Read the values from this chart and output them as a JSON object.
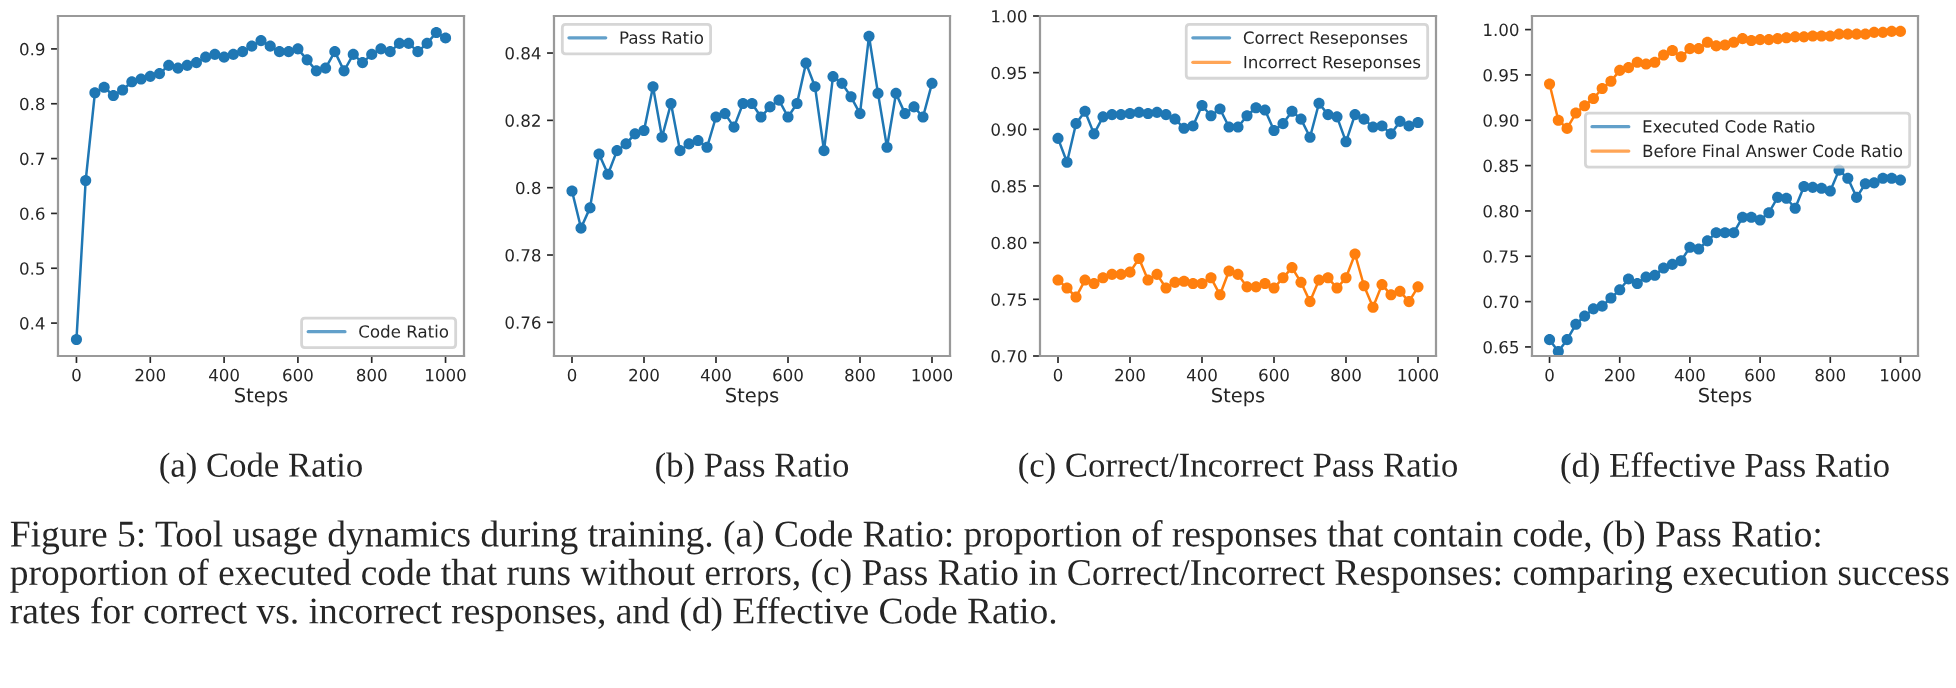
{
  "chart_data": [
    {
      "type": "line",
      "title": "(a) Code Ratio",
      "xlabel": "Steps",
      "x": [
        0,
        25,
        50,
        75,
        100,
        125,
        150,
        175,
        200,
        225,
        250,
        275,
        300,
        325,
        350,
        375,
        400,
        425,
        450,
        475,
        500,
        525,
        550,
        575,
        600,
        625,
        650,
        675,
        700,
        725,
        750,
        775,
        800,
        825,
        850,
        875,
        900,
        925,
        950,
        975,
        1000
      ],
      "series": [
        {
          "name": "Code Ratio",
          "color": "#1f77b4",
          "values": [
            0.37,
            0.66,
            0.82,
            0.83,
            0.815,
            0.825,
            0.84,
            0.845,
            0.85,
            0.855,
            0.87,
            0.865,
            0.87,
            0.875,
            0.885,
            0.89,
            0.885,
            0.89,
            0.895,
            0.905,
            0.915,
            0.905,
            0.895,
            0.895,
            0.9,
            0.88,
            0.86,
            0.865,
            0.895,
            0.86,
            0.89,
            0.875,
            0.89,
            0.9,
            0.895,
            0.91,
            0.91,
            0.895,
            0.91,
            0.93,
            0.92
          ]
        }
      ],
      "xlim": [
        -50,
        1050
      ],
      "xticks": [
        0,
        200,
        400,
        600,
        800,
        1000
      ],
      "ylim": [
        0.34,
        0.96
      ],
      "yticks": [
        0.4,
        0.5,
        0.6,
        0.7,
        0.8,
        0.9
      ],
      "grid": false,
      "legend": "lower right",
      "marker": "circle",
      "line_style": "solid",
      "annotations": [
        "Figure 5: Tool usage dynamics during training. (a) Code Ratio: proportion of responses that contain code, (b) Pass Ratio: proportion of executed code that runs without errors, (c) Pass Ratio in Correct/Incorrect Responses: comparing execution success rates for correct vs. incorrect responses, and (d) Effective Code Ratio."
      ]
    },
    {
      "type": "line",
      "title": "(b) Pass Ratio",
      "xlabel": "Steps",
      "x": [
        0,
        25,
        50,
        75,
        100,
        125,
        150,
        175,
        200,
        225,
        250,
        275,
        300,
        325,
        350,
        375,
        400,
        425,
        450,
        475,
        500,
        525,
        550,
        575,
        600,
        625,
        650,
        675,
        700,
        725,
        750,
        775,
        800,
        825,
        850,
        875,
        900,
        925,
        950,
        975,
        1000
      ],
      "series": [
        {
          "name": "Pass Ratio",
          "color": "#1f77b4",
          "values": [
            0.799,
            0.788,
            0.794,
            0.81,
            0.804,
            0.811,
            0.813,
            0.816,
            0.817,
            0.83,
            0.815,
            0.825,
            0.811,
            0.813,
            0.814,
            0.812,
            0.821,
            0.822,
            0.818,
            0.825,
            0.825,
            0.821,
            0.824,
            0.826,
            0.821,
            0.825,
            0.837,
            0.83,
            0.811,
            0.833,
            0.831,
            0.827,
            0.822,
            0.845,
            0.828,
            0.812,
            0.828,
            0.822,
            0.824,
            0.821,
            0.831
          ]
        }
      ],
      "xlim": [
        -50,
        1050
      ],
      "xticks": [
        0,
        200,
        400,
        600,
        800,
        1000
      ],
      "ylim": [
        0.75,
        0.851
      ],
      "yticks": [
        0.76,
        0.78,
        0.8,
        0.82,
        0.84
      ],
      "grid": false,
      "legend": "top left",
      "marker": "circle",
      "line_style": "solid"
    },
    {
      "type": "line",
      "title": "(c) Correct/Incorrect Pass Ratio",
      "xlabel": "Steps",
      "x": [
        0,
        25,
        50,
        75,
        100,
        125,
        150,
        175,
        200,
        225,
        250,
        275,
        300,
        325,
        350,
        375,
        400,
        425,
        450,
        475,
        500,
        525,
        550,
        575,
        600,
        625,
        650,
        675,
        700,
        725,
        750,
        775,
        800,
        825,
        850,
        875,
        900,
        925,
        950,
        975,
        1000
      ],
      "series": [
        {
          "name": "Correct Reseponses",
          "color": "#1f77b4",
          "values": [
            0.892,
            0.871,
            0.905,
            0.916,
            0.896,
            0.911,
            0.913,
            0.913,
            0.914,
            0.915,
            0.914,
            0.915,
            0.913,
            0.909,
            0.901,
            0.903,
            0.921,
            0.912,
            0.918,
            0.902,
            0.902,
            0.912,
            0.919,
            0.917,
            0.899,
            0.905,
            0.916,
            0.909,
            0.893,
            0.923,
            0.913,
            0.911,
            0.889,
            0.913,
            0.909,
            0.902,
            0.903,
            0.896,
            0.907,
            0.903,
            0.906
          ]
        },
        {
          "name": "Incorrect Reseponses",
          "color": "#ff7f0e",
          "values": [
            0.767,
            0.76,
            0.752,
            0.767,
            0.764,
            0.769,
            0.772,
            0.772,
            0.774,
            0.786,
            0.767,
            0.772,
            0.76,
            0.765,
            0.766,
            0.764,
            0.764,
            0.769,
            0.754,
            0.775,
            0.772,
            0.761,
            0.761,
            0.764,
            0.76,
            0.769,
            0.778,
            0.765,
            0.748,
            0.767,
            0.769,
            0.76,
            0.769,
            0.79,
            0.762,
            0.743,
            0.763,
            0.754,
            0.757,
            0.748,
            0.761
          ]
        }
      ],
      "xlim": [
        -50,
        1050
      ],
      "xticks": [
        0,
        200,
        400,
        600,
        800,
        1000
      ],
      "ylim": [
        0.7,
        1.0
      ],
      "yticks": [
        {
          "value": 0.7,
          "label": "0.70"
        },
        {
          "value": 0.75,
          "label": "0.75"
        },
        {
          "value": 0.8,
          "label": "0.80"
        },
        {
          "value": 0.85,
          "label": "0.85"
        },
        {
          "value": 0.9,
          "label": "0.90"
        },
        {
          "value": 0.95,
          "label": "0.95"
        },
        {
          "value": 1.0,
          "label": "1.00"
        }
      ],
      "grid": false,
      "legend": "top right",
      "marker": "circle",
      "line_style": "solid"
    },
    {
      "type": "line",
      "title": "(d) Effective Pass Ratio",
      "xlabel": "Steps",
      "x": [
        0,
        25,
        50,
        75,
        100,
        125,
        150,
        175,
        200,
        225,
        250,
        275,
        300,
        325,
        350,
        375,
        400,
        425,
        450,
        475,
        500,
        525,
        550,
        575,
        600,
        625,
        650,
        675,
        700,
        725,
        750,
        775,
        800,
        825,
        850,
        875,
        900,
        925,
        950,
        975,
        1000
      ],
      "series": [
        {
          "name": "Executed Code Ratio",
          "color": "#1f77b4",
          "values": [
            0.658,
            0.645,
            0.658,
            0.675,
            0.684,
            0.692,
            0.695,
            0.704,
            0.713,
            0.725,
            0.72,
            0.727,
            0.729,
            0.737,
            0.741,
            0.745,
            0.76,
            0.758,
            0.767,
            0.776,
            0.776,
            0.776,
            0.793,
            0.793,
            0.79,
            0.798,
            0.815,
            0.814,
            0.803,
            0.827,
            0.826,
            0.825,
            0.822,
            0.845,
            0.836,
            0.815,
            0.83,
            0.831,
            0.836,
            0.836,
            0.834
          ]
        },
        {
          "name": "Before Final Answer Code Ratio",
          "color": "#ff7f0e",
          "values": [
            0.94,
            0.9,
            0.891,
            0.908,
            0.916,
            0.924,
            0.935,
            0.943,
            0.955,
            0.958,
            0.964,
            0.962,
            0.964,
            0.972,
            0.977,
            0.97,
            0.979,
            0.979,
            0.986,
            0.982,
            0.983,
            0.986,
            0.99,
            0.988,
            0.989,
            0.989,
            0.99,
            0.991,
            0.992,
            0.992,
            0.993,
            0.993,
            0.993,
            0.995,
            0.995,
            0.995,
            0.995,
            0.997,
            0.997,
            0.998,
            0.998
          ]
        }
      ],
      "xlim": [
        -50,
        1050
      ],
      "xticks": [
        0,
        200,
        400,
        600,
        800,
        1000
      ],
      "ylim": [
        0.64,
        1.015
      ],
      "yticks": [
        {
          "value": 0.65,
          "label": "0.65"
        },
        {
          "value": 0.7,
          "label": "0.70"
        },
        {
          "value": 0.75,
          "label": "0.75"
        },
        {
          "value": 0.8,
          "label": "0.80"
        },
        {
          "value": 0.85,
          "label": "0.85"
        },
        {
          "value": 0.9,
          "label": "0.90"
        },
        {
          "value": 0.95,
          "label": "0.95"
        },
        {
          "value": 1.0,
          "label": "1.00"
        }
      ],
      "grid": false,
      "legend": "right",
      "marker": "circle",
      "line_style": "solid"
    }
  ]
}
